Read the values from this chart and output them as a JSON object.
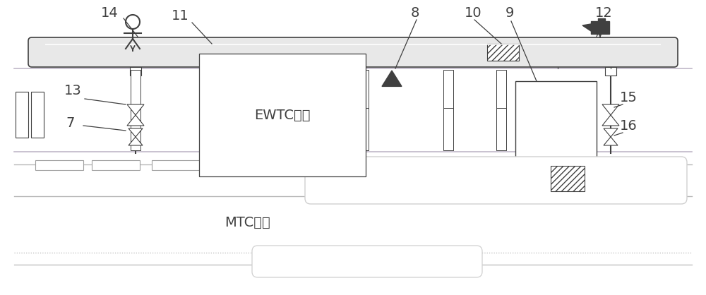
{
  "background_color": "#ffffff",
  "line_color": "#404040",
  "light_gray": "#d0d0d0",
  "mid_gray": "#a0a0a0",
  "gantry_fill": "#e8e8e8",
  "lane_line_color": "#c0b8c8",
  "lane_line_color2": "#b8b8b8",
  "ewtc_label": "EWTC车道",
  "mtc_label": "MTC车道",
  "fig_w": 10.0,
  "fig_h": 4.18
}
